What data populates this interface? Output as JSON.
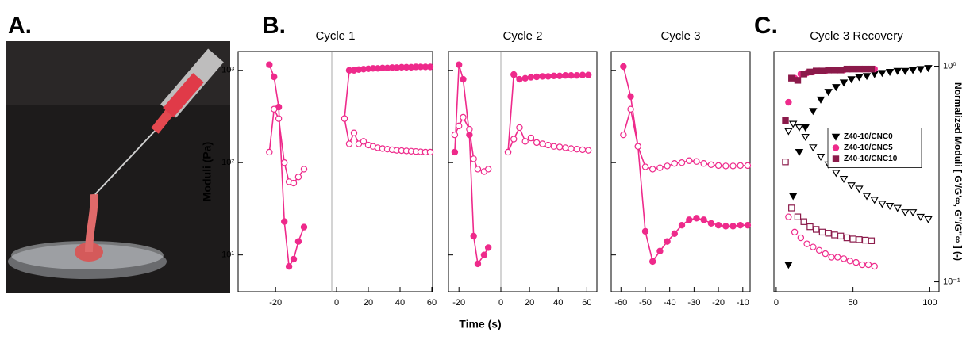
{
  "panel_labels": [
    "A.",
    "B.",
    "C."
  ],
  "x_label": "Time (s)",
  "chart_data": [
    {
      "type": "line",
      "title": "Cycle 1",
      "y_label": "Moduli (Pa)",
      "log_y": true,
      "ylim": [
        4,
        1600
      ],
      "yticks": [
        {
          "value": 10,
          "label": "10¹"
        },
        {
          "value": 100,
          "label": "10²"
        },
        {
          "value": 1000,
          "label": "10³"
        }
      ],
      "segments": [
        {
          "xlim": [
            -32,
            -2
          ],
          "xticks": [
            -20
          ],
          "series": [
            {
              "marker": "filled",
              "color": "#ee2a8b",
              "x": [
                -22,
                -20.5,
                -19,
                -17.2,
                -15.7,
                -14.2,
                -12.7,
                -10.9
              ],
              "values": [
                1150,
                850,
                400,
                23,
                7.5,
                9,
                14,
                20
              ]
            },
            {
              "marker": "open",
              "color": "#ee2a8b",
              "x": [
                -22,
                -20.5,
                -19,
                -17.2,
                -15.7,
                -14.2,
                -12.7,
                -10.9
              ],
              "values": [
                130,
                380,
                300,
                100,
                62,
                60,
                70,
                85
              ]
            }
          ]
        },
        {
          "xlim": [
            -3,
            60.5
          ],
          "xticks": [
            0,
            20,
            40,
            60
          ],
          "series": [
            {
              "marker": "filled",
              "color": "#ee2a8b",
              "x": [
                5,
                8,
                11,
                14,
                17,
                20,
                23,
                26,
                29,
                32,
                35,
                38,
                41,
                44,
                47,
                50,
                53,
                56,
                59
              ],
              "values": [
                300,
                1000,
                1000,
                1020,
                1030,
                1040,
                1050,
                1050,
                1060,
                1060,
                1070,
                1070,
                1080,
                1080,
                1080,
                1090,
                1090,
                1090,
                1090
              ]
            },
            {
              "marker": "open",
              "color": "#ee2a8b",
              "x": [
                5,
                8,
                11,
                14,
                17,
                20,
                23,
                26,
                29,
                32,
                35,
                38,
                41,
                44,
                47,
                50,
                53,
                56,
                59
              ],
              "values": [
                300,
                160,
                210,
                160,
                170,
                155,
                150,
                145,
                142,
                140,
                138,
                136,
                135,
                134,
                133,
                132,
                131,
                130,
                130
              ]
            }
          ]
        }
      ]
    },
    {
      "type": "line",
      "title": "Cycle 2",
      "log_y": true,
      "ylim": [
        4,
        1600
      ],
      "yticks": [
        10,
        100,
        1000
      ],
      "segments": [
        {
          "xlim": [
            -25,
            0
          ],
          "xticks": [
            -20
          ],
          "series": [
            {
              "marker": "filled",
              "color": "#ee2a8b",
              "x": [
                -22,
                -20,
                -18,
                -15,
                -13,
                -11,
                -8,
                -6
              ],
              "values": [
                130,
                1150,
                800,
                200,
                16,
                8,
                10,
                12
              ]
            },
            {
              "marker": "open",
              "color": "#ee2a8b",
              "x": [
                -22,
                -20,
                -18,
                -15,
                -13,
                -11,
                -8,
                -6
              ],
              "values": [
                200,
                250,
                310,
                230,
                110,
                85,
                80,
                85
              ]
            }
          ]
        },
        {
          "xlim": [
            0,
            67
          ],
          "xticks": [
            0,
            20,
            40,
            60
          ],
          "series": [
            {
              "marker": "filled",
              "color": "#ee2a8b",
              "x": [
                5,
                9,
                13,
                17,
                21,
                25,
                29,
                33,
                37,
                41,
                45,
                49,
                53,
                57,
                61
              ],
              "values": [
                130,
                900,
                800,
                820,
                840,
                850,
                860,
                860,
                870,
                870,
                880,
                880,
                880,
                890,
                890
              ]
            },
            {
              "marker": "open",
              "color": "#ee2a8b",
              "x": [
                5,
                9,
                13,
                17,
                21,
                25,
                29,
                33,
                37,
                41,
                45,
                49,
                53,
                57,
                61
              ],
              "values": [
                130,
                180,
                240,
                170,
                185,
                165,
                160,
                155,
                150,
                148,
                145,
                142,
                140,
                138,
                136
              ]
            }
          ]
        }
      ]
    },
    {
      "type": "line",
      "title": "Cycle 3",
      "log_y": true,
      "ylim": [
        4,
        1600
      ],
      "yticks": [
        10,
        100,
        1000
      ],
      "xlim": [
        -64,
        -7
      ],
      "xticks": [
        -60,
        -50,
        -40,
        -30,
        -20,
        -10
      ],
      "series": [
        {
          "marker": "filled",
          "color": "#ee2a8b",
          "x": [
            -59,
            -56,
            -53,
            -50,
            -47,
            -44,
            -41,
            -38,
            -35,
            -32,
            -29,
            -26,
            -23,
            -20,
            -17,
            -14,
            -11,
            -8
          ],
          "values": [
            1100,
            520,
            150,
            18,
            8.5,
            11,
            14,
            17,
            21,
            24,
            25,
            24,
            22,
            21,
            20.5,
            20.5,
            21,
            21
          ]
        },
        {
          "marker": "open",
          "color": "#ee2a8b",
          "x": [
            -59,
            -56,
            -53,
            -50,
            -47,
            -44,
            -41,
            -38,
            -35,
            -32,
            -29,
            -26,
            -23,
            -20,
            -17,
            -14,
            -11,
            -8
          ],
          "values": [
            200,
            380,
            150,
            90,
            85,
            88,
            92,
            98,
            100,
            105,
            103,
            98,
            95,
            93,
            92,
            92,
            93,
            93
          ]
        }
      ]
    },
    {
      "type": "scatter",
      "title": "Cycle 3 Recovery",
      "y_label": "Normalized Moduli [ G'/G'∞, G''/G''∞ ] (-)",
      "y_side": "right",
      "log_y": true,
      "ylim": [
        0.09,
        1.17
      ],
      "yticks": [
        {
          "value": 1,
          "label": "10⁰"
        },
        {
          "value": 0.1,
          "label": "10⁻¹"
        }
      ],
      "xlim": [
        -1.5,
        106
      ],
      "xticks": [
        0,
        50,
        100
      ],
      "legend": "center right",
      "series": [
        {
          "name": "Z40-10/CNC0",
          "color": "#000000",
          "marker": "triangle-down",
          "x": [
            8,
            11,
            15,
            19,
            24,
            29,
            34,
            39,
            44,
            49,
            54,
            59,
            64,
            69,
            74,
            79,
            84,
            89,
            94,
            99
          ],
          "storage": [
            0.12,
            0.25,
            0.4,
            0.52,
            0.62,
            0.7,
            0.76,
            0.8,
            0.84,
            0.87,
            0.89,
            0.9,
            0.92,
            0.93,
            0.94,
            0.95,
            0.95,
            0.96,
            0.97,
            0.98
          ],
          "loss": [
            0.5,
            0.54,
            0.52,
            0.47,
            0.42,
            0.38,
            0.35,
            0.32,
            0.3,
            0.28,
            0.27,
            0.25,
            0.24,
            0.23,
            0.225,
            0.22,
            0.21,
            0.21,
            0.2,
            0.195
          ]
        },
        {
          "name": "Z40-10/CNC5",
          "color": "#ee2a8b",
          "marker": "circle",
          "x": [
            8,
            12,
            16,
            20,
            24,
            28,
            32,
            36,
            40,
            44,
            48,
            52,
            56,
            60,
            64
          ],
          "storage": [
            0.68,
            0.88,
            0.92,
            0.93,
            0.94,
            0.95,
            0.95,
            0.96,
            0.96,
            0.96,
            0.97,
            0.97,
            0.97,
            0.97,
            0.97
          ],
          "loss": [
            0.2,
            0.17,
            0.16,
            0.15,
            0.145,
            0.14,
            0.135,
            0.13,
            0.13,
            0.128,
            0.125,
            0.123,
            0.12,
            0.12,
            0.118
          ]
        },
        {
          "name": "Z40-10/CNC10",
          "color": "#8b1a4a",
          "marker": "square",
          "x": [
            6,
            10,
            14,
            18,
            22,
            26,
            30,
            34,
            38,
            42,
            46,
            50,
            54,
            58,
            62
          ],
          "storage": [
            0.56,
            0.88,
            0.86,
            0.92,
            0.94,
            0.95,
            0.95,
            0.96,
            0.96,
            0.96,
            0.97,
            0.97,
            0.97,
            0.97,
            0.97
          ],
          "loss": [
            0.36,
            0.22,
            0.2,
            0.19,
            0.18,
            0.175,
            0.17,
            0.168,
            0.165,
            0.163,
            0.16,
            0.158,
            0.157,
            0.156,
            0.155
          ]
        }
      ]
    }
  ]
}
